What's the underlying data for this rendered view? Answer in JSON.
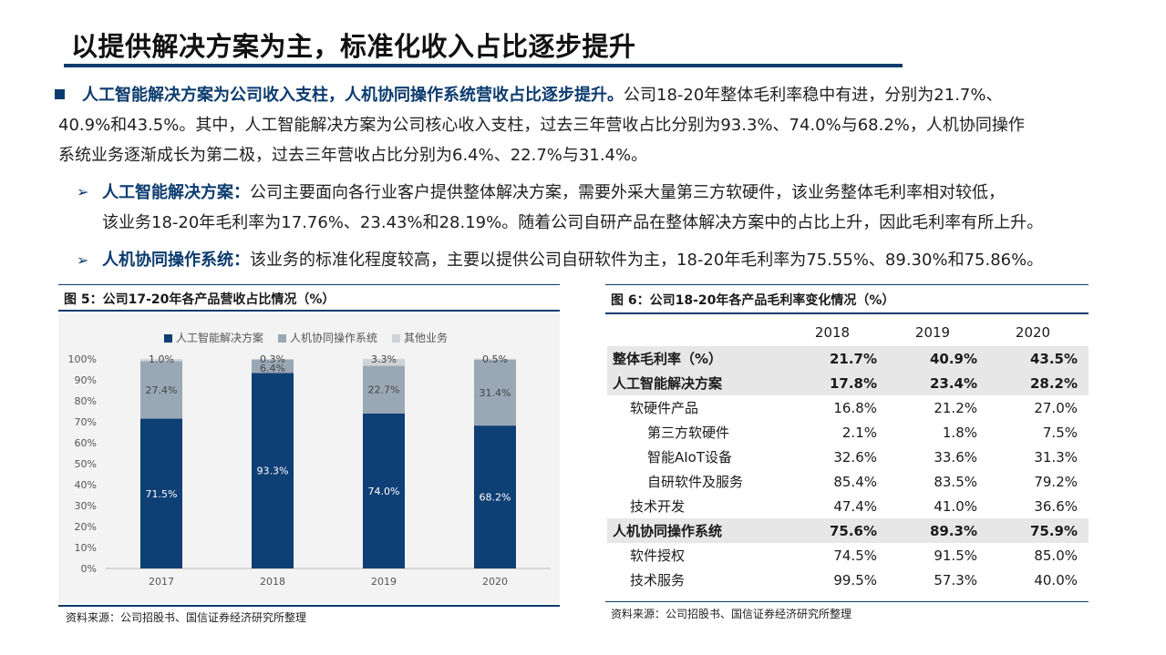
{
  "title": "以提供解决方案为主，标准化收入占比逐步提升",
  "para1": {
    "highlight": "人工智能解决方案为公司收入支柱，人机协同操作系统营收占比逐步提升。",
    "line1_rest": "公司18-20年整体毛利率稳中有进，分别为21.7%、",
    "line2": "40.9%和43.5%。其中，人工智能解决方案为公司核心收入支柱，过去三年营收占比分别为93.3%、74.0%与68.2%，人机协同操作",
    "line3": "系统业务逐渐成长为第二极，过去三年营收占比分别为6.4%、22.7%与31.4%。"
  },
  "para2": {
    "highlight": "人工智能解决方案：",
    "line1_rest": "公司主要面向各行业客户提供整体解决方案，需要外采大量第三方软硬件，该业务整体毛利率相对较低，",
    "line2": "该业务18-20年毛利率为17.76%、23.43%和28.19%。随着公司自研产品在整体解决方案中的占比上升，因此毛利率有所上升。"
  },
  "para3": {
    "highlight": "人机协同操作系统：",
    "line1_rest": "该业务的标准化程度较高，主要以提供公司自研软件为主，18-20年毛利率为75.55%、89.30%和75.86%。"
  },
  "bullets": {
    "square": "■",
    "arrow": "➢"
  },
  "fig5": {
    "heading": "图 5：公司17-20年各产品营收占比情况（%）",
    "source": "资料来源：公司招股书、国信证券经济研究所整理"
  },
  "chart_data": {
    "type": "bar",
    "stacked": true,
    "categories": [
      "2017",
      "2018",
      "2019",
      "2020"
    ],
    "series": [
      {
        "name": "人工智能解决方案",
        "color": "#0e3f75",
        "values": [
          71.5,
          93.3,
          74.0,
          68.2
        ],
        "labels": [
          "71.5%",
          "93.3%",
          "74.0%",
          "68.2%"
        ]
      },
      {
        "name": "人机协同操作系统",
        "color": "#9aa8b5",
        "values": [
          27.4,
          6.4,
          22.7,
          31.4
        ],
        "labels": [
          "27.4%",
          "6.4%",
          "22.7%",
          "31.4%"
        ]
      },
      {
        "name": "其他业务",
        "color": "#cfd3d7",
        "values": [
          1.0,
          0.3,
          3.3,
          0.5
        ],
        "labels": [
          "1.0%",
          "0.3%",
          "3.3%",
          "0.5%"
        ]
      }
    ],
    "ylim": [
      0,
      100
    ],
    "yticks": [
      "0%",
      "10%",
      "20%",
      "30%",
      "40%",
      "50%",
      "60%",
      "70%",
      "80%",
      "90%",
      "100%"
    ],
    "legend_position": "top",
    "grid": false
  },
  "fig6": {
    "heading": "图 6：公司18-20年各产品毛利率变化情况（%）",
    "source": "资料来源：公司招股书、国信证券经济研究所整理",
    "years": [
      "2018",
      "2019",
      "2020"
    ],
    "rows": [
      {
        "label": "整体毛利率（%）",
        "values": [
          "21.7%",
          "40.9%",
          "43.5%"
        ],
        "bold": true,
        "shade": true,
        "indent": 0
      },
      {
        "label": "人工智能解决方案",
        "values": [
          "17.8%",
          "23.4%",
          "28.2%"
        ],
        "bold": true,
        "shade": true,
        "indent": 0
      },
      {
        "label": "软硬件产品",
        "values": [
          "16.8%",
          "21.2%",
          "27.0%"
        ],
        "bold": false,
        "shade": false,
        "indent": 1
      },
      {
        "label": "第三方软硬件",
        "values": [
          "2.1%",
          "1.8%",
          "7.5%"
        ],
        "bold": false,
        "shade": false,
        "indent": 2
      },
      {
        "label": "智能AIoT设备",
        "values": [
          "32.6%",
          "33.6%",
          "31.3%"
        ],
        "bold": false,
        "shade": false,
        "indent": 2
      },
      {
        "label": "自研软件及服务",
        "values": [
          "85.4%",
          "83.5%",
          "79.2%"
        ],
        "bold": false,
        "shade": false,
        "indent": 2
      },
      {
        "label": "技术开发",
        "values": [
          "47.4%",
          "41.0%",
          "36.6%"
        ],
        "bold": false,
        "shade": false,
        "indent": 1
      },
      {
        "label": "人机协同操作系统",
        "values": [
          "75.6%",
          "89.3%",
          "75.9%"
        ],
        "bold": true,
        "shade": true,
        "indent": 0
      },
      {
        "label": "软件授权",
        "values": [
          "74.5%",
          "91.5%",
          "85.0%"
        ],
        "bold": false,
        "shade": false,
        "indent": 1
      },
      {
        "label": "技术服务",
        "values": [
          "99.5%",
          "57.3%",
          "40.0%"
        ],
        "bold": false,
        "shade": false,
        "indent": 1
      }
    ]
  }
}
